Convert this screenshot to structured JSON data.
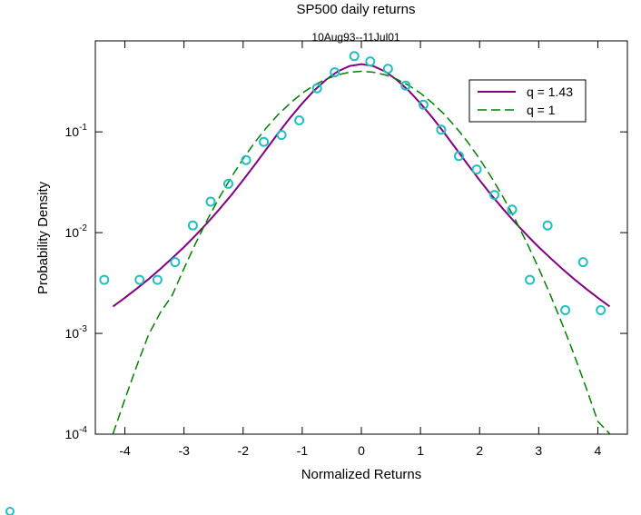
{
  "chart_data": {
    "type": "scatter",
    "title": "SP500 daily returns",
    "subtitle": "10Aug93--11Jul01",
    "xlabel": "Normalized Returns",
    "ylabel": "Probability Density",
    "xlim": [
      -4.5,
      4.5
    ],
    "ylim": [
      0.0001,
      0.8
    ],
    "yscale": "log",
    "x_ticks": [
      -4,
      -3,
      -2,
      -1,
      0,
      1,
      2,
      3,
      4
    ],
    "x_tick_labels": [
      "-4",
      "-3",
      "-2",
      "-1",
      "0",
      "1",
      "2",
      "3",
      "4"
    ],
    "y_ticks": [
      {
        "value": 0.1,
        "base": "10",
        "exp": "-1"
      },
      {
        "value": 0.01,
        "base": "10",
        "exp": "-2"
      },
      {
        "value": 0.001,
        "base": "10",
        "exp": "-3"
      },
      {
        "value": 0.0001,
        "base": "10",
        "exp": "-4"
      }
    ],
    "grid": false,
    "legend_position": "top-right",
    "series": [
      {
        "name": "q = 1.43",
        "kind": "line",
        "style": "solid",
        "color": "#800080",
        "x": [
          -4.2,
          -4.0,
          -3.8,
          -3.6,
          -3.4,
          -3.2,
          -3.0,
          -2.8,
          -2.6,
          -2.4,
          -2.2,
          -2.0,
          -1.8,
          -1.6,
          -1.4,
          -1.2,
          -1.0,
          -0.8,
          -0.6,
          -0.4,
          -0.2,
          0.0,
          0.2,
          0.4,
          0.6,
          0.8,
          1.0,
          1.2,
          1.4,
          1.6,
          1.8,
          2.0,
          2.2,
          2.4,
          2.6,
          2.8,
          3.0,
          3.2,
          3.4,
          3.6,
          3.8,
          4.0,
          4.2
        ],
        "y": [
          0.00185,
          0.00226,
          0.00278,
          0.00346,
          0.00436,
          0.00557,
          0.0072,
          0.00946,
          0.0126,
          0.0171,
          0.0236,
          0.0332,
          0.0474,
          0.0682,
          0.0981,
          0.139,
          0.192,
          0.257,
          0.328,
          0.398,
          0.45,
          0.47,
          0.45,
          0.398,
          0.328,
          0.257,
          0.192,
          0.139,
          0.0981,
          0.0682,
          0.0474,
          0.0332,
          0.0236,
          0.0171,
          0.0126,
          0.00946,
          0.0072,
          0.00557,
          0.00436,
          0.00346,
          0.00278,
          0.00226,
          0.00185
        ]
      },
      {
        "name": "q = 1",
        "kind": "line",
        "style": "dashed",
        "color": "#008000",
        "x": [
          -4.2,
          -4.0,
          -3.8,
          -3.6,
          -3.4,
          -3.2,
          -3.0,
          -2.8,
          -2.6,
          -2.4,
          -2.2,
          -2.0,
          -1.8,
          -1.6,
          -1.4,
          -1.2,
          -1.0,
          -0.8,
          -0.6,
          -0.4,
          -0.2,
          0.0,
          0.2,
          0.4,
          0.6,
          0.8,
          1.0,
          1.2,
          1.4,
          1.6,
          1.8,
          2.0,
          2.2,
          2.4,
          2.6,
          2.8,
          3.0,
          3.2,
          3.4,
          3.6,
          3.8,
          4.0,
          4.2
        ],
        "y": [
          0.000101,
          0.000223,
          0.000475,
          0.000969,
          0.00161,
          0.00238,
          0.00443,
          0.00792,
          0.0136,
          0.0224,
          0.0355,
          0.054,
          0.079,
          0.111,
          0.15,
          0.194,
          0.242,
          0.29,
          0.333,
          0.368,
          0.391,
          0.399,
          0.391,
          0.368,
          0.333,
          0.29,
          0.242,
          0.194,
          0.15,
          0.111,
          0.079,
          0.054,
          0.0355,
          0.0224,
          0.0136,
          0.00792,
          0.00443,
          0.00238,
          0.00123,
          0.000612,
          0.000292,
          0.000134,
          0.000101
        ]
      },
      {
        "name": "",
        "kind": "scatter",
        "color": "#20c0c0",
        "x": [
          -4.35,
          -3.75,
          -3.45,
          -3.15,
          -2.85,
          -2.55,
          -2.25,
          -1.95,
          -1.65,
          -1.35,
          -1.05,
          -0.75,
          -0.45,
          -0.12,
          0.15,
          0.45,
          0.75,
          1.05,
          1.35,
          1.65,
          1.95,
          2.25,
          2.55,
          2.85,
          3.15,
          3.45,
          3.75,
          4.05
        ],
        "y": [
          0.0034,
          0.0034,
          0.0034,
          0.0051,
          0.0118,
          0.0203,
          0.0305,
          0.0525,
          0.0795,
          0.0932,
          0.13,
          0.271,
          0.39,
          0.564,
          0.5,
          0.423,
          0.288,
          0.186,
          0.105,
          0.0575,
          0.0423,
          0.0237,
          0.0169,
          0.0034,
          0.0118,
          0.0017,
          0.0051,
          0.0017
        ]
      }
    ]
  },
  "legend": {
    "items": [
      {
        "label": "q = 1.43"
      },
      {
        "label": "q = 1"
      }
    ]
  }
}
